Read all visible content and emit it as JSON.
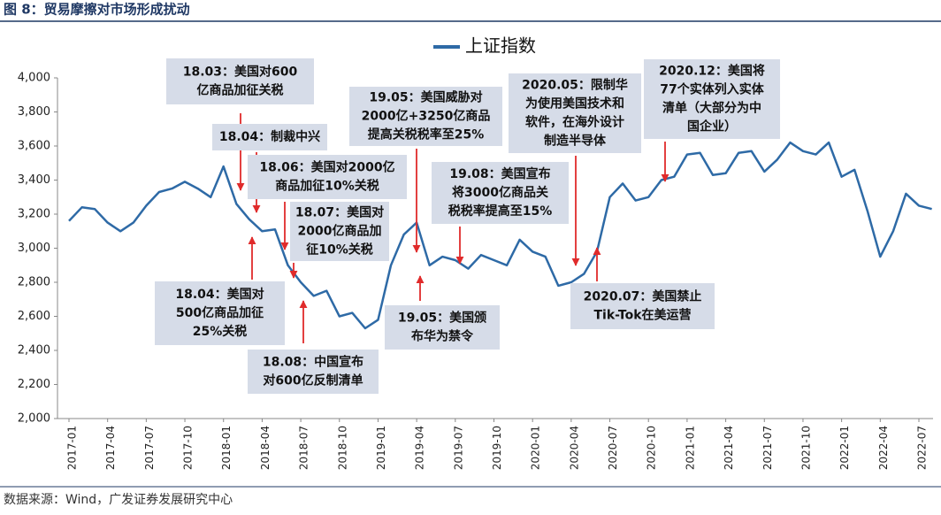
{
  "chart_data": {
    "type": "line",
    "title": "图 8：贸易摩擦对市场形成扰动",
    "source": "数据来源：Wind，广发证券发展研究中心",
    "categories": [
      "2017-01",
      null,
      null,
      "2017-04",
      null,
      null,
      "2017-07",
      null,
      null,
      "2017-10",
      null,
      null,
      "2018-01",
      null,
      null,
      "2018-04",
      null,
      null,
      "2018-07",
      null,
      null,
      "2018-10",
      null,
      null,
      "2019-01",
      null,
      null,
      "2019-04",
      null,
      null,
      "2019-07",
      null,
      null,
      "2019-10",
      null,
      null,
      "2020-01",
      null,
      null,
      "2020-04",
      null,
      null,
      "2020-07",
      null,
      null,
      "2020-10",
      null,
      null,
      "2021-01",
      null,
      null,
      "2021-04",
      null,
      null,
      "2021-07",
      null,
      null,
      "2021-10",
      null,
      null,
      "2022-01",
      null,
      null,
      "2022-04",
      null,
      null,
      "2022-07",
      null
    ],
    "series": [
      {
        "name": "上证指数",
        "color": "#2e6aa6",
        "values": [
          3160,
          3240,
          3230,
          3150,
          3100,
          3150,
          3250,
          3330,
          3350,
          3390,
          3350,
          3300,
          3480,
          3260,
          3170,
          3100,
          3110,
          2900,
          2800,
          2720,
          2750,
          2600,
          2620,
          2530,
          2580,
          2900,
          3080,
          3150,
          2900,
          2950,
          2930,
          2880,
          2960,
          2930,
          2900,
          3050,
          2980,
          2950,
          2780,
          2800,
          2850,
          2980,
          3300,
          3380,
          3280,
          3300,
          3400,
          3420,
          3550,
          3560,
          3430,
          3440,
          3560,
          3570,
          3450,
          3520,
          3620,
          3570,
          3550,
          3620,
          3420,
          3460,
          3220,
          2950,
          3100,
          3320,
          3250,
          3230
        ]
      }
    ],
    "ylim": [
      2000,
      4000
    ],
    "yticks": [
      {
        "value": 2000,
        "label": "2,000"
      },
      {
        "value": 2200,
        "label": "2,200"
      },
      {
        "value": 2400,
        "label": "2,400"
      },
      {
        "value": 2600,
        "label": "2,600"
      },
      {
        "value": 2800,
        "label": "2,800"
      },
      {
        "value": 3000,
        "label": "3,000"
      },
      {
        "value": 3200,
        "label": "3,200"
      },
      {
        "value": 3400,
        "label": "3,400"
      },
      {
        "value": 3600,
        "label": "3,600"
      },
      {
        "value": 3800,
        "label": "3,800"
      },
      {
        "value": 4000,
        "label": "4,000"
      }
    ],
    "legend": "top",
    "annotations": [
      {
        "lines": [
          "18.03：美国对600",
          "亿商品加征关税"
        ]
      },
      {
        "lines": [
          "18.04：制裁中兴"
        ]
      },
      {
        "lines": [
          "18.06：美国对2000亿",
          "商品加征10%关税"
        ]
      },
      {
        "lines": [
          "18.07：美国对",
          "2000亿商品加",
          "征10%关税"
        ]
      },
      {
        "lines": [
          "18.04：美国对",
          "500亿商品加征",
          "25%关税"
        ]
      },
      {
        "lines": [
          "18.08：中国宣布",
          "对600亿反制清单"
        ]
      },
      {
        "lines": [
          "19.05：美国威胁对",
          "2000亿+3250亿商品",
          "提高关税税率至25%"
        ]
      },
      {
        "lines": [
          "19.05：美国颁",
          "布华为禁令"
        ]
      },
      {
        "lines": [
          "19.08：美国宣布",
          "将3000亿商品关",
          "税税率提高至15%"
        ]
      },
      {
        "lines": [
          "2020.05：限制华",
          "为使用美国技术和",
          "软件，在海外设计",
          "制造半导体"
        ]
      },
      {
        "lines": [
          "2020.07：美国禁止",
          "Tik-Tok在美运营"
        ]
      },
      {
        "lines": [
          "2020.12：美国将",
          "77个实体列入实体",
          "清单（大部分为中",
          "国企业）"
        ]
      }
    ]
  }
}
